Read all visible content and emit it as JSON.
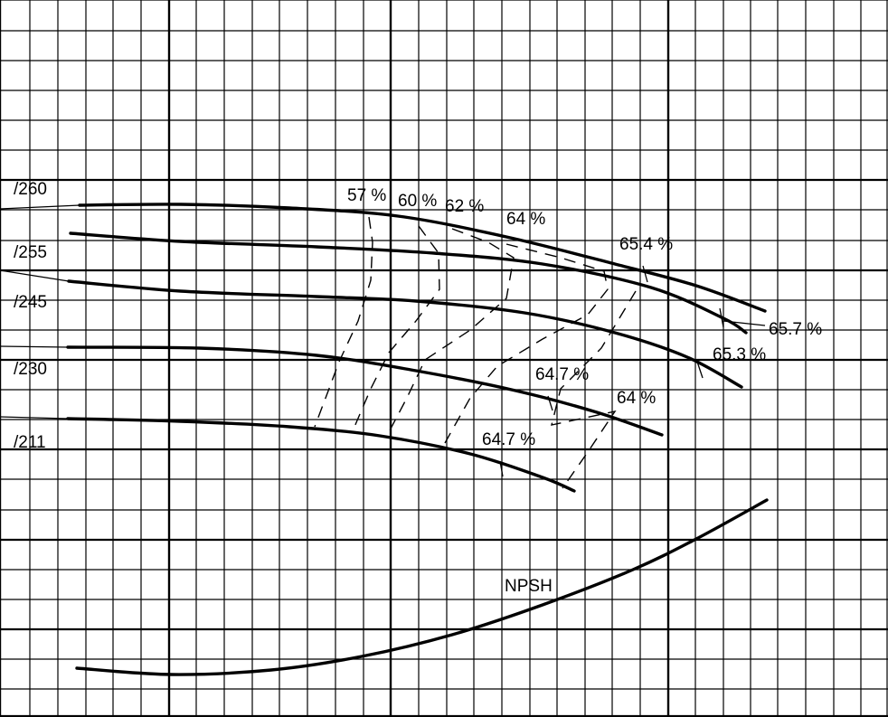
{
  "chart_data": {
    "type": "line",
    "title": "",
    "xlabel": "",
    "ylabel": "",
    "grid": true,
    "series": [
      {
        "name": "/260",
        "kind": "head",
        "label": "/260"
      },
      {
        "name": "/255",
        "kind": "head",
        "label": "/255"
      },
      {
        "name": "/245",
        "kind": "head",
        "label": "/245"
      },
      {
        "name": "/230",
        "kind": "head",
        "label": "/230"
      },
      {
        "name": "/211",
        "kind": "head",
        "label": "/211"
      },
      {
        "name": "NPSH",
        "kind": "npsh",
        "label": "NPSH"
      }
    ],
    "efficiency_lines": [
      "57 %",
      "60 %",
      "62 %",
      "64 %",
      "65.4 %",
      "65.7 %"
    ],
    "efficiency_annotations": [
      "57 %",
      "60 %",
      "62 %",
      "64 %",
      "65.4 %",
      "65.7 %",
      "65.3 %",
      "64.7 %",
      "64 %",
      "64.7 %"
    ]
  }
}
